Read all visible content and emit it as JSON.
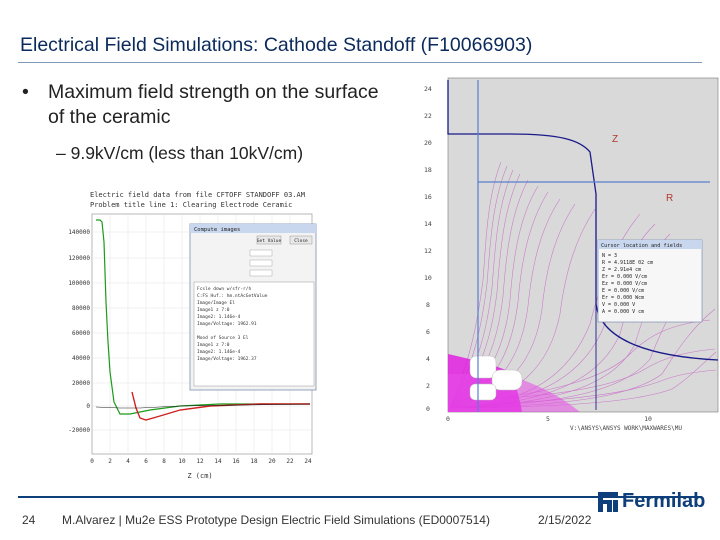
{
  "slide": {
    "title": "Electrical Field Simulations: Cathode Standoff (F10066903)",
    "bullet": "Maximum field strength on the surface of the ceramic",
    "sub_bullet": "– 9.9kV/cm (less than 10kV/cm)"
  },
  "left_plot": {
    "header_line1": "Electric field data from file CFTOFF STANDOFF 03.AM",
    "header_line2": "Problem title line 1: Clearing Electrode Ceramic",
    "dialog_title": "Compute images",
    "get_value_label": "Get Value",
    "close_label": "Close",
    "xaxis_label": "Z (cm)",
    "y_ticks": [
      "140000",
      "120000",
      "100000",
      "80000",
      "60000",
      "40000",
      "20000",
      "0",
      "-20000"
    ],
    "x_ticks": [
      "0",
      "2",
      "4",
      "6",
      "8",
      "10",
      "12",
      "14",
      "16",
      "18",
      "20",
      "22",
      "24"
    ],
    "panel_lines": [
      "Fcsle down w/sfr-r/h",
      "C:FS Huf.: hm.ntAcGetValue",
      "Image/Image El",
      "Image1 z 7:0",
      "Image2: 1.146e-4",
      "Image/Voltage: 1962.91",
      "",
      "Mood of Source 3 El",
      "Image1 z 7:0",
      "Image2: 1.146e-4",
      "Image/Voltage: 1962.37"
    ]
  },
  "right_plot": {
    "axis_z_label": "Z",
    "axis_r_label": "R",
    "y_ticks": [
      "24",
      "22",
      "20",
      "18",
      "16",
      "14",
      "12",
      "10",
      "8",
      "6",
      "4",
      "2",
      "0"
    ],
    "x_ticks": [
      "0",
      "5",
      "10"
    ],
    "path_label": "V:\\ANSYS\\ANSYS WORK\\MAXWARES\\MU",
    "cursor_panel_title": "Cursor location and fields",
    "cursor_rows": [
      "N = 3",
      "R = 4.9118E 02 cm",
      "Z = 2.91e4 cm",
      "Er = 0.000 V/cm",
      "Ez = 0.000 V/cm",
      "E = 0.000 V/cm",
      "Er = 0.000 Wcm",
      "V = 0.000 V",
      "A = 0.000 V cm"
    ]
  },
  "footer": {
    "page_number": "24",
    "author": "M.Alvarez | Mu2e ESS Prototype Design Electric Field Simulations (ED0007514)",
    "date": "2/15/2022",
    "logo_text": "Fermilab"
  },
  "colors": {
    "title": "#0b2a5b",
    "footer_bar": "#0e3f7a",
    "field_magenta": "#e020e0",
    "field_lines": "#d080d0"
  }
}
